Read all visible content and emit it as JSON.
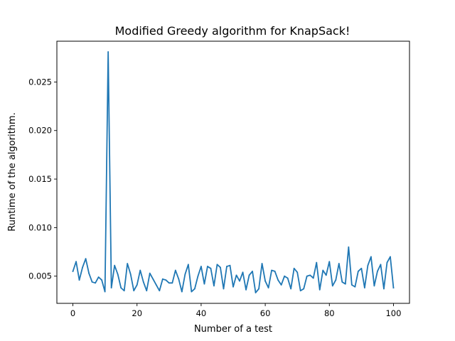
{
  "chart_data": {
    "type": "line",
    "title": "Modified Greedy algorithm for KnapSack!",
    "xlabel": "Number of a test",
    "ylabel": "Runtime of the algorithm.",
    "xlim": [
      -5,
      105
    ],
    "ylim": [
      0.0022,
      0.0292
    ],
    "xticks": [
      0,
      20,
      40,
      60,
      80,
      100
    ],
    "yticks": [
      0.005,
      0.01,
      0.015,
      0.02,
      0.025
    ],
    "ytick_labels": [
      "0.005",
      "0.010",
      "0.015",
      "0.020",
      "0.025"
    ],
    "grid": false,
    "series": [
      {
        "color": "#1f77b4",
        "x": [
          0,
          1,
          2,
          3,
          4,
          5,
          6,
          7,
          8,
          9,
          10,
          11,
          12,
          13,
          14,
          15,
          16,
          17,
          18,
          19,
          20,
          21,
          22,
          23,
          24,
          25,
          26,
          27,
          28,
          29,
          30,
          31,
          32,
          33,
          34,
          35,
          36,
          37,
          38,
          39,
          40,
          41,
          42,
          43,
          44,
          45,
          46,
          47,
          48,
          49,
          50,
          51,
          52,
          53,
          54,
          55,
          56,
          57,
          58,
          59,
          60,
          61,
          62,
          63,
          64,
          65,
          66,
          67,
          68,
          69,
          70,
          71,
          72,
          73,
          74,
          75,
          76,
          77,
          78,
          79,
          80,
          81,
          82,
          83,
          84,
          85,
          86,
          87,
          88,
          89,
          90,
          91,
          92,
          93,
          94,
          95,
          96,
          97,
          98,
          99,
          100
        ],
        "values": [
          0.0055,
          0.0065,
          0.0046,
          0.0059,
          0.0068,
          0.0053,
          0.0044,
          0.0043,
          0.0049,
          0.0046,
          0.0034,
          0.0281,
          0.0038,
          0.0061,
          0.0052,
          0.0038,
          0.0035,
          0.0063,
          0.0052,
          0.0035,
          0.0041,
          0.0056,
          0.0044,
          0.0035,
          0.0053,
          0.0047,
          0.0041,
          0.0035,
          0.0047,
          0.0046,
          0.0043,
          0.0043,
          0.0056,
          0.0047,
          0.0034,
          0.0052,
          0.0062,
          0.0034,
          0.0037,
          0.005,
          0.006,
          0.0042,
          0.006,
          0.0058,
          0.004,
          0.0062,
          0.0059,
          0.0037,
          0.006,
          0.0061,
          0.0039,
          0.0051,
          0.0045,
          0.0054,
          0.0036,
          0.0051,
          0.0055,
          0.0033,
          0.0037,
          0.0063,
          0.0045,
          0.0038,
          0.0056,
          0.0055,
          0.0046,
          0.0041,
          0.005,
          0.0048,
          0.0037,
          0.0058,
          0.0054,
          0.0035,
          0.0037,
          0.005,
          0.0051,
          0.0048,
          0.0064,
          0.0036,
          0.0056,
          0.0051,
          0.0065,
          0.004,
          0.0046,
          0.0063,
          0.0044,
          0.0042,
          0.008,
          0.0041,
          0.0039,
          0.0055,
          0.0058,
          0.0038,
          0.0061,
          0.007,
          0.004,
          0.0055,
          0.0062,
          0.0037,
          0.0064,
          0.007,
          0.0038
        ]
      }
    ]
  }
}
